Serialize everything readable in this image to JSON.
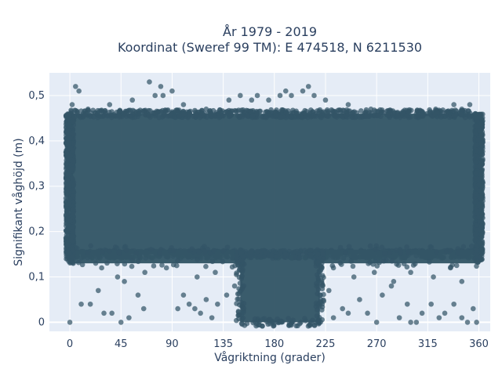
{
  "chart_data": {
    "type": "scatter",
    "title_line1": "År 1979 - 2019",
    "title_line2": "Koordinat (Sweref 99 TM): E 474518, N 6211530",
    "xlabel": "Vågriktning (grader)",
    "ylabel": "Signifikant våghöjd (m)",
    "xlim": [
      -18,
      370
    ],
    "ylim": [
      -0.02,
      0.55
    ],
    "x_ticks": [
      0,
      45,
      90,
      135,
      180,
      225,
      270,
      315,
      360
    ],
    "x_tick_labels": [
      "0",
      "45",
      "90",
      "135",
      "180",
      "225",
      "270",
      "315",
      "360"
    ],
    "y_ticks": [
      0,
      0.1,
      0.2,
      0.3,
      0.4,
      0.5
    ],
    "y_tick_labels": [
      "0",
      "0,1",
      "0,2",
      "0,3",
      "0,4",
      "0,5"
    ],
    "grid": true,
    "marker_color": "#335566",
    "background_color": "#e5ecf6",
    "dense_regions": [
      {
        "x_range": [
          0,
          360
        ],
        "y_range": [
          0.15,
          0.46
        ]
      },
      {
        "x_range": [
          150,
          220
        ],
        "y_range": [
          0.0,
          0.15
        ]
      },
      {
        "x_range": [
          0,
          150
        ],
        "y_range": [
          0.13,
          0.16
        ]
      },
      {
        "x_range": [
          220,
          360
        ],
        "y_range": [
          0.13,
          0.16
        ]
      }
    ],
    "points": [
      [
        0,
        0.0
      ],
      [
        5,
        0.52
      ],
      [
        8,
        0.51
      ],
      [
        10,
        0.04
      ],
      [
        18,
        0.04
      ],
      [
        25,
        0.07
      ],
      [
        30,
        0.02
      ],
      [
        37,
        0.02
      ],
      [
        45,
        0.0
      ],
      [
        48,
        0.09
      ],
      [
        52,
        0.01
      ],
      [
        60,
        0.06
      ],
      [
        65,
        0.03
      ],
      [
        70,
        0.53
      ],
      [
        80,
        0.52
      ],
      [
        82,
        0.5
      ],
      [
        90,
        0.51
      ],
      [
        95,
        0.03
      ],
      [
        100,
        0.06
      ],
      [
        105,
        0.04
      ],
      [
        110,
        0.03
      ],
      [
        115,
        0.02
      ],
      [
        120,
        0.05
      ],
      [
        125,
        0.01
      ],
      [
        130,
        0.04
      ],
      [
        138,
        0.06
      ],
      [
        145,
        0.08
      ],
      [
        150,
        0.5
      ],
      [
        165,
        0.5
      ],
      [
        175,
        0.49
      ],
      [
        185,
        0.5
      ],
      [
        190,
        0.51
      ],
      [
        195,
        0.5
      ],
      [
        205,
        0.51
      ],
      [
        210,
        0.52
      ],
      [
        215,
        0.5
      ],
      [
        228,
        0.07
      ],
      [
        232,
        0.01
      ],
      [
        240,
        0.03
      ],
      [
        245,
        0.02
      ],
      [
        255,
        0.05
      ],
      [
        262,
        0.02
      ],
      [
        270,
        0.0
      ],
      [
        275,
        0.06
      ],
      [
        283,
        0.08
      ],
      [
        290,
        0.01
      ],
      [
        297,
        0.04
      ],
      [
        300,
        0.0
      ],
      [
        305,
        0.0
      ],
      [
        310,
        0.02
      ],
      [
        318,
        0.04
      ],
      [
        325,
        0.01
      ],
      [
        330,
        0.02
      ],
      [
        338,
        0.04
      ],
      [
        345,
        0.01
      ],
      [
        350,
        0.0
      ],
      [
        355,
        0.03
      ],
      [
        358,
        0.0
      ],
      [
        338,
        0.48
      ],
      [
        345,
        0.47
      ],
      [
        352,
        0.48
      ],
      [
        358,
        0.45
      ],
      [
        28,
        0.12
      ],
      [
        42,
        0.1
      ],
      [
        66,
        0.11
      ],
      [
        85,
        0.12
      ],
      [
        112,
        0.1
      ],
      [
        128,
        0.11
      ],
      [
        232,
        0.12
      ],
      [
        250,
        0.1
      ],
      [
        268,
        0.11
      ],
      [
        285,
        0.09
      ],
      [
        300,
        0.11
      ],
      [
        320,
        0.1
      ],
      [
        335,
        0.12
      ],
      [
        345,
        0.09
      ],
      [
        16,
        0.47
      ],
      [
        35,
        0.48
      ],
      [
        55,
        0.49
      ],
      [
        75,
        0.5
      ],
      [
        100,
        0.48
      ],
      [
        120,
        0.47
      ],
      [
        140,
        0.49
      ],
      [
        160,
        0.49
      ],
      [
        225,
        0.49
      ],
      [
        245,
        0.48
      ],
      [
        265,
        0.47
      ],
      [
        285,
        0.46
      ],
      [
        305,
        0.46
      ],
      [
        322,
        0.47
      ],
      [
        3,
        0.13
      ],
      [
        2,
        0.48
      ],
      [
        358,
        0.16
      ],
      [
        357,
        0.46
      ]
    ]
  }
}
